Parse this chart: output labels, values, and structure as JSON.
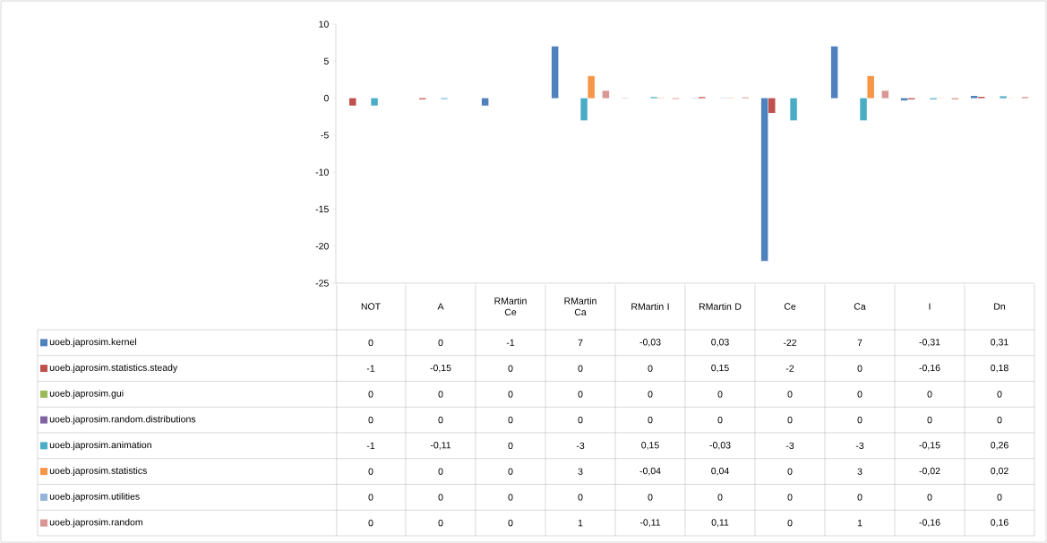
{
  "chart_data": {
    "type": "bar",
    "categories": [
      "NOT",
      "A",
      "RMartin Ce",
      "RMartin Ca",
      "RMartin I",
      "RMartin D",
      "Ce",
      "Ca",
      "I",
      "Dn"
    ],
    "ylim": [
      -25,
      10
    ],
    "yticks": [
      -25,
      -20,
      -15,
      -10,
      -5,
      0,
      5,
      10
    ],
    "legend": "bottom",
    "series": [
      {
        "name": "uoeb.japrosim.kernel",
        "color": "#4f81bd",
        "values": [
          0,
          0,
          -1,
          7,
          -0.03,
          0.03,
          -22,
          7,
          -0.31,
          0.31
        ],
        "value_labels": [
          "0",
          "0",
          "-1",
          "7",
          "-0,03",
          "0,03",
          "-22",
          "7",
          "-0,31",
          "0,31"
        ]
      },
      {
        "name": "uoeb.japrosim.statistics.steady",
        "color": "#c0504d",
        "values": [
          -1,
          -0.15,
          0,
          0,
          0,
          0.15,
          -2,
          0,
          -0.16,
          0.18
        ],
        "value_labels": [
          "-1",
          "-0,15",
          "0",
          "0",
          "0",
          "0,15",
          "-2",
          "0",
          "-0,16",
          "0,18"
        ]
      },
      {
        "name": "uoeb.japrosim.gui",
        "color": "#9bbb59",
        "values": [
          0,
          0,
          0,
          0,
          0,
          0,
          0,
          0,
          0,
          0
        ],
        "value_labels": [
          "0",
          "0",
          "0",
          "0",
          "0",
          "0",
          "0",
          "0",
          "0",
          "0"
        ]
      },
      {
        "name": "uoeb.japrosim.random.distributions",
        "color": "#8064a2",
        "values": [
          0,
          0,
          0,
          0,
          0,
          0,
          0,
          0,
          0,
          0
        ],
        "value_labels": [
          "0",
          "0",
          "0",
          "0",
          "0",
          "0",
          "0",
          "0",
          "0",
          "0"
        ]
      },
      {
        "name": "uoeb.japrosim.animation",
        "color": "#4bacc6",
        "values": [
          -1,
          -0.11,
          0,
          -3,
          0.15,
          -0.03,
          -3,
          -3,
          -0.15,
          0.26
        ],
        "value_labels": [
          "-1",
          "-0,11",
          "0",
          "-3",
          "0,15",
          "-0,03",
          "-3",
          "-3",
          "-0,15",
          "0,26"
        ]
      },
      {
        "name": "uoeb.japrosim.statistics",
        "color": "#f79646",
        "values": [
          0,
          0,
          0,
          3,
          -0.04,
          0.04,
          0,
          3,
          -0.02,
          0.02
        ],
        "value_labels": [
          "0",
          "0",
          "0",
          "3",
          "-0,04",
          "0,04",
          "0",
          "3",
          "-0,02",
          "0,02"
        ]
      },
      {
        "name": "uoeb.japrosim.utilities",
        "color": "#95b3d7",
        "values": [
          0,
          0,
          0,
          0,
          0,
          0,
          0,
          0,
          0,
          0
        ],
        "value_labels": [
          "0",
          "0",
          "0",
          "0",
          "0",
          "0",
          "0",
          "0",
          "0",
          "0"
        ]
      },
      {
        "name": "uoeb.japrosim.random",
        "color": "#d99694",
        "values": [
          0,
          0,
          0,
          1,
          -0.11,
          0.11,
          0,
          1,
          -0.16,
          0.16
        ],
        "value_labels": [
          "0",
          "0",
          "0",
          "1",
          "-0,11",
          "0,11",
          "0",
          "1",
          "-0,16",
          "0,16"
        ]
      }
    ]
  }
}
